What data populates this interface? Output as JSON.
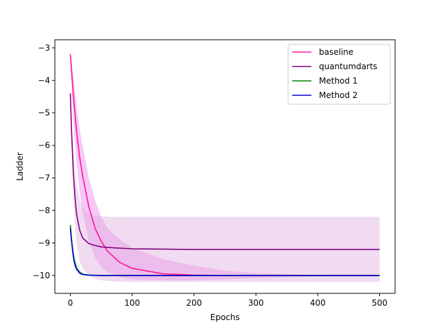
{
  "chart_data": {
    "type": "line",
    "title": "",
    "xlabel": "Epochs",
    "ylabel": "Ladder",
    "xlim": [
      -25,
      525
    ],
    "ylim": [
      -10.55,
      -2.75
    ],
    "xticks": [
      0,
      100,
      200,
      300,
      400,
      500
    ],
    "yticks": [
      -10,
      -9,
      -8,
      -7,
      -6,
      -5,
      -4,
      -3
    ],
    "xtick_labels": [
      "0",
      "100",
      "200",
      "300",
      "400",
      "500"
    ],
    "ytick_labels": [
      "−10",
      "−9",
      "−8",
      "−7",
      "−6",
      "−5",
      "−4",
      "−3"
    ],
    "grid": false,
    "legend_position": "top-right",
    "series": [
      {
        "name": "baseline",
        "color": "#ff1493",
        "band_color": "#ee82ee",
        "x": [
          0,
          5,
          10,
          15,
          20,
          30,
          40,
          50,
          60,
          80,
          100,
          150,
          200,
          250,
          300,
          400,
          500
        ],
        "y": [
          -3.2,
          -4.5,
          -5.55,
          -6.35,
          -6.95,
          -7.9,
          -8.55,
          -8.95,
          -9.25,
          -9.6,
          -9.78,
          -9.95,
          -9.99,
          -10.0,
          -10.0,
          -10.0,
          -10.0
        ],
        "band_upper": [
          -3.05,
          -3.9,
          -4.75,
          -5.5,
          -6.05,
          -7.0,
          -7.7,
          -8.2,
          -8.55,
          -8.9,
          -9.15,
          -9.5,
          -9.7,
          -9.85,
          -9.93,
          -9.98,
          -10.0
        ],
        "band_lower": [
          -3.3,
          -5.3,
          -6.5,
          -7.4,
          -8.05,
          -8.95,
          -9.45,
          -9.75,
          -9.9,
          -10.05,
          -10.12,
          -10.15,
          -10.15,
          -10.12,
          -10.08,
          -10.03,
          -10.0
        ]
      },
      {
        "name": "quantumdarts",
        "color": "#800080",
        "band_color": "#ddb0dd",
        "x": [
          0,
          2,
          5,
          8,
          10,
          15,
          20,
          30,
          40,
          50,
          70,
          100,
          150,
          200,
          300,
          400,
          500
        ],
        "y": [
          -4.4,
          -5.6,
          -6.9,
          -7.7,
          -8.1,
          -8.6,
          -8.85,
          -9.02,
          -9.08,
          -9.12,
          -9.15,
          -9.18,
          -9.19,
          -9.2,
          -9.2,
          -9.2,
          -9.2
        ],
        "band_upper": [
          -4.3,
          -5.2,
          -6.2,
          -6.9,
          -7.2,
          -7.65,
          -7.9,
          -8.1,
          -8.15,
          -8.18,
          -8.2,
          -8.2,
          -8.2,
          -8.2,
          -8.2,
          -8.2,
          -8.2
        ],
        "band_lower": [
          -4.5,
          -6.0,
          -7.6,
          -8.5,
          -9.0,
          -9.55,
          -9.8,
          -10.0,
          -10.1,
          -10.15,
          -10.18,
          -10.2,
          -10.2,
          -10.2,
          -10.2,
          -10.2,
          -10.2
        ]
      },
      {
        "name": "Method 1",
        "color": "#008000",
        "band_color": "#c8f0c8",
        "x": [
          0,
          2,
          4,
          6,
          8,
          10,
          15,
          20,
          30,
          50,
          100,
          200,
          500
        ],
        "y": [
          -8.45,
          -8.9,
          -9.25,
          -9.5,
          -9.65,
          -9.78,
          -9.9,
          -9.96,
          -9.99,
          -10.0,
          -10.0,
          -10.0,
          -10.0
        ],
        "band_upper": [
          -8.2,
          -8.6,
          -8.95,
          -9.25,
          -9.45,
          -9.6,
          -9.8,
          -9.9,
          -9.97,
          -10.0,
          -10.0,
          -10.0,
          -10.0
        ],
        "band_lower": [
          -8.6,
          -9.1,
          -9.45,
          -9.7,
          -9.82,
          -9.9,
          -9.98,
          -10.0,
          -10.0,
          -10.0,
          -10.0,
          -10.0,
          -10.0
        ]
      },
      {
        "name": "Method 2",
        "color": "#0000cd",
        "band_color": "#c8c8ff",
        "x": [
          0,
          2,
          4,
          6,
          8,
          10,
          15,
          20,
          30,
          50,
          100,
          200,
          500
        ],
        "y": [
          -8.55,
          -8.95,
          -9.3,
          -9.55,
          -9.7,
          -9.8,
          -9.92,
          -9.97,
          -9.99,
          -10.0,
          -10.0,
          -10.0,
          -10.0
        ],
        "band_upper": [
          -8.4,
          -8.8,
          -9.1,
          -9.35,
          -9.5,
          -9.65,
          -9.82,
          -9.92,
          -9.98,
          -10.0,
          -10.0,
          -10.0,
          -10.0
        ],
        "band_lower": [
          -8.65,
          -9.1,
          -9.45,
          -9.7,
          -9.82,
          -9.9,
          -9.98,
          -10.0,
          -10.0,
          -10.0,
          -10.0,
          -10.0,
          -10.0
        ]
      }
    ]
  }
}
